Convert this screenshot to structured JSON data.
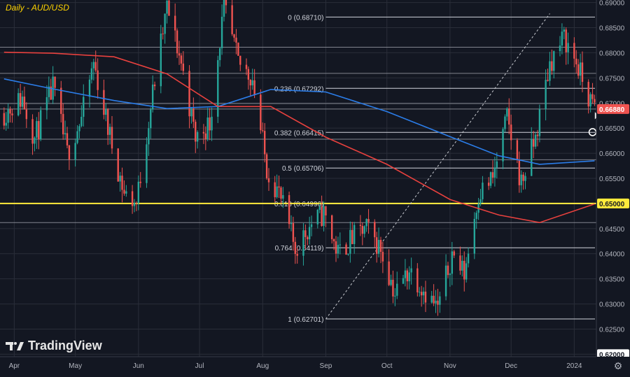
{
  "title": "Daily - AUD/USD",
  "brand": "TradingView",
  "colors": {
    "background": "#131722",
    "grid": "#2a2e39",
    "axis_text": "#b2b5be",
    "up": "#26a69a",
    "down": "#ef5350",
    "ma_blue": "#2b7de9",
    "ma_red": "#e8413e",
    "fib": "#d1d4dc",
    "support": "#ffeb3b"
  },
  "chart_data": {
    "type": "candlestick",
    "title": "Daily - AUD/USD",
    "ylim": [
      0.6195,
      0.6905
    ],
    "y_ticks": [
      "0.69000",
      "0.68500",
      "0.68000",
      "0.67500",
      "0.67000",
      "0.66500",
      "0.66000",
      "0.65500",
      "0.65000",
      "0.64500",
      "0.64000",
      "0.63500",
      "0.63000",
      "0.62500",
      "0.62000"
    ],
    "x_labels": [
      "Apr",
      "May",
      "Jun",
      "Jul",
      "Aug",
      "Sep",
      "Oct",
      "Nov",
      "Dec",
      "2024"
    ],
    "price_labels": [
      {
        "text": "0.66880",
        "value": 0.6688,
        "color": "#ef5350"
      },
      {
        "text": "0.65000",
        "value": 0.65,
        "color": "#ffeb3b"
      },
      {
        "text": "0.62000",
        "value": 0.62,
        "color": "#ffffff"
      }
    ],
    "fibonacci": [
      {
        "label": "0 (0.68710)",
        "value": 0.6871
      },
      {
        "label": "0.236 (0.67292)",
        "value": 0.67292
      },
      {
        "label": "0.382 (0.66415)",
        "value": 0.66415
      },
      {
        "label": "0.5 (0.65706)",
        "value": 0.65706
      },
      {
        "label": "0.618 (0.64996)",
        "value": 0.64996
      },
      {
        "label": "0.764 (0.64119)",
        "value": 0.64119
      },
      {
        "label": "1 (0.62701)",
        "value": 0.62701
      }
    ],
    "horizontal_levels": [
      0.6811,
      0.6759,
      0.6699,
      0.6688,
      0.6628,
      0.6587,
      0.6462
    ],
    "support_level": 0.65,
    "ohlc_anchors": [
      {
        "date": "2023-03-27",
        "close": 0.668
      },
      {
        "date": "2023-04-05",
        "close": 0.671
      },
      {
        "date": "2023-04-11",
        "close": 0.663
      },
      {
        "date": "2023-04-20",
        "close": 0.673
      },
      {
        "date": "2023-04-27",
        "close": 0.66
      },
      {
        "date": "2023-05-04",
        "close": 0.667
      },
      {
        "date": "2023-05-10",
        "close": 0.678
      },
      {
        "date": "2023-05-17",
        "close": 0.665
      },
      {
        "date": "2023-05-25",
        "close": 0.652
      },
      {
        "date": "2023-05-31",
        "close": 0.65
      },
      {
        "date": "2023-06-08",
        "close": 0.672
      },
      {
        "date": "2023-06-15",
        "close": 0.689
      },
      {
        "date": "2023-06-22",
        "close": 0.678
      },
      {
        "date": "2023-06-29",
        "close": 0.663
      },
      {
        "date": "2023-07-06",
        "close": 0.666
      },
      {
        "date": "2023-07-13",
        "close": 0.689
      },
      {
        "date": "2023-07-20",
        "close": 0.678
      },
      {
        "date": "2023-07-27",
        "close": 0.675
      },
      {
        "date": "2023-08-03",
        "close": 0.657
      },
      {
        "date": "2023-08-09",
        "close": 0.652
      },
      {
        "date": "2023-08-17",
        "close": 0.641
      },
      {
        "date": "2023-08-25",
        "close": 0.646
      },
      {
        "date": "2023-08-31",
        "close": 0.648
      },
      {
        "date": "2023-09-07",
        "close": 0.64
      },
      {
        "date": "2023-09-14",
        "close": 0.643
      },
      {
        "date": "2023-09-21",
        "close": 0.645
      },
      {
        "date": "2023-09-28",
        "close": 0.641
      },
      {
        "date": "2023-10-05",
        "close": 0.632
      },
      {
        "date": "2023-10-12",
        "close": 0.637
      },
      {
        "date": "2023-10-19",
        "close": 0.633
      },
      {
        "date": "2023-10-26",
        "close": 0.629
      },
      {
        "date": "2023-11-02",
        "close": 0.64
      },
      {
        "date": "2023-11-08",
        "close": 0.636
      },
      {
        "date": "2023-11-15",
        "close": 0.652
      },
      {
        "date": "2023-11-22",
        "close": 0.655
      },
      {
        "date": "2023-11-29",
        "close": 0.667
      },
      {
        "date": "2023-12-06",
        "close": 0.654
      },
      {
        "date": "2023-12-13",
        "close": 0.663
      },
      {
        "date": "2023-12-20",
        "close": 0.678
      },
      {
        "date": "2023-12-27",
        "close": 0.683
      },
      {
        "date": "2024-01-02",
        "close": 0.678
      },
      {
        "date": "2024-01-08",
        "close": 0.671
      },
      {
        "date": "2024-01-11",
        "close": 0.6688
      }
    ],
    "moving_averages": [
      {
        "color": "#2b7de9",
        "points": [
          {
            "date": "2023-03-27",
            "value": 0.6748
          },
          {
            "date": "2023-04-20",
            "value": 0.6728
          },
          {
            "date": "2023-05-20",
            "value": 0.6705
          },
          {
            "date": "2023-06-15",
            "value": 0.6689
          },
          {
            "date": "2023-07-10",
            "value": 0.6693
          },
          {
            "date": "2023-08-05",
            "value": 0.6727
          },
          {
            "date": "2023-09-01",
            "value": 0.6722
          },
          {
            "date": "2023-10-01",
            "value": 0.6683
          },
          {
            "date": "2023-11-01",
            "value": 0.6633
          },
          {
            "date": "2023-11-25",
            "value": 0.6595
          },
          {
            "date": "2023-12-15",
            "value": 0.6578
          },
          {
            "date": "2024-01-11",
            "value": 0.6585
          }
        ]
      },
      {
        "color": "#e8413e",
        "points": [
          {
            "date": "2023-03-27",
            "value": 0.6801
          },
          {
            "date": "2023-04-20",
            "value": 0.6799
          },
          {
            "date": "2023-05-20",
            "value": 0.6792
          },
          {
            "date": "2023-06-15",
            "value": 0.6758
          },
          {
            "date": "2023-07-10",
            "value": 0.6693
          },
          {
            "date": "2023-08-05",
            "value": 0.6693
          },
          {
            "date": "2023-09-01",
            "value": 0.6632
          },
          {
            "date": "2023-10-01",
            "value": 0.6578
          },
          {
            "date": "2023-11-01",
            "value": 0.6508
          },
          {
            "date": "2023-11-25",
            "value": 0.6477
          },
          {
            "date": "2023-12-15",
            "value": 0.6462
          },
          {
            "date": "2024-01-11",
            "value": 0.6499
          }
        ]
      }
    ],
    "trendline": {
      "from": {
        "date": "2023-09-01",
        "value": 0.627
      },
      "to": {
        "date": "2023-12-20",
        "value": 0.6878
      }
    },
    "annotations": [
      {
        "type": "circle",
        "date": "2024-01-10",
        "value": 0.6642
      },
      {
        "type": "arrow",
        "date": "2024-01-11",
        "value": 0.6683
      }
    ]
  }
}
